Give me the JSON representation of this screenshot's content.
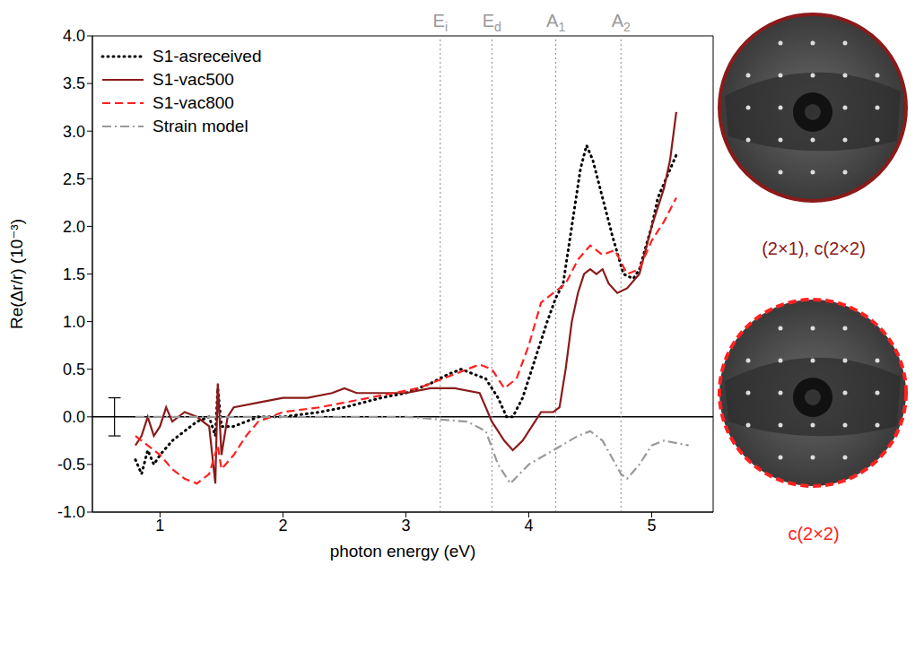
{
  "chart_data": {
    "type": "line",
    "x_label": "photon energy (eV)",
    "y_label": "Re(Δr/r) (10⁻³)",
    "xlim": [
      0.45,
      5.5
    ],
    "xticks": [
      1,
      2,
      3,
      4,
      5
    ],
    "ylim": [
      -1,
      4
    ],
    "yticks": [
      {
        "value": -1,
        "label": "-1.0"
      },
      -0.5,
      {
        "value": 0,
        "label": "0.0"
      },
      0.5,
      {
        "value": 1,
        "label": "1.0"
      },
      1.5,
      {
        "value": 2,
        "label": "2.0"
      },
      2.5,
      {
        "value": 3,
        "label": "3.0"
      },
      3.5,
      {
        "value": 4,
        "label": "4.0"
      }
    ],
    "grid": false,
    "legend": "upper left",
    "series": [
      {
        "name": "S1-asreceived",
        "color": "#000000",
        "line_style": "dotted",
        "x": [
          0.8,
          0.85,
          0.9,
          0.95,
          1.0,
          1.1,
          1.2,
          1.3,
          1.4,
          1.45,
          1.47,
          1.5,
          1.6,
          1.8,
          2.0,
          2.3,
          2.5,
          2.8,
          3.0,
          3.2,
          3.35,
          3.45,
          3.55,
          3.65,
          3.75,
          3.82,
          3.87,
          3.95,
          4.05,
          4.15,
          4.22,
          4.28,
          4.35,
          4.42,
          4.47,
          4.52,
          4.6,
          4.68,
          4.77,
          4.85,
          4.9,
          5.0,
          5.05,
          5.15,
          5.2
        ],
        "values": [
          -0.45,
          -0.6,
          -0.35,
          -0.5,
          -0.4,
          -0.25,
          -0.15,
          -0.05,
          0.0,
          -0.2,
          0.3,
          -0.1,
          -0.1,
          0.0,
          0.0,
          0.05,
          0.1,
          0.2,
          0.25,
          0.35,
          0.45,
          0.5,
          0.45,
          0.4,
          0.2,
          0.0,
          0.0,
          0.2,
          0.6,
          1.0,
          1.25,
          1.4,
          2.0,
          2.6,
          2.85,
          2.7,
          2.3,
          1.9,
          1.5,
          1.45,
          1.55,
          2.0,
          2.3,
          2.6,
          2.75
        ]
      },
      {
        "name": "S1-vac500",
        "color": "#8b1a1a",
        "line_style": "solid",
        "x": [
          0.8,
          0.85,
          0.9,
          0.95,
          1.0,
          1.05,
          1.1,
          1.2,
          1.3,
          1.4,
          1.45,
          1.47,
          1.5,
          1.55,
          1.6,
          1.8,
          2.0,
          2.2,
          2.4,
          2.5,
          2.6,
          2.8,
          3.0,
          3.2,
          3.4,
          3.6,
          3.65,
          3.7,
          3.8,
          3.87,
          3.95,
          4.05,
          4.1,
          4.2,
          4.25,
          4.3,
          4.35,
          4.4,
          4.45,
          4.5,
          4.55,
          4.6,
          4.65,
          4.72,
          4.8,
          4.9,
          5.0,
          5.1,
          5.15,
          5.2
        ],
        "values": [
          -0.3,
          -0.2,
          0.0,
          -0.2,
          -0.1,
          0.1,
          -0.05,
          0.05,
          0.0,
          -0.1,
          -0.7,
          0.35,
          -0.4,
          0.0,
          0.1,
          0.15,
          0.2,
          0.2,
          0.25,
          0.3,
          0.25,
          0.25,
          0.25,
          0.3,
          0.3,
          0.25,
          0.1,
          -0.05,
          -0.25,
          -0.35,
          -0.25,
          -0.05,
          0.05,
          0.05,
          0.1,
          0.5,
          1.0,
          1.3,
          1.5,
          1.55,
          1.5,
          1.55,
          1.4,
          1.3,
          1.35,
          1.5,
          2.0,
          2.4,
          2.7,
          3.2
        ]
      },
      {
        "name": "S1-vac800",
        "color": "#ff2020",
        "line_style": "dashed",
        "x": [
          0.8,
          0.9,
          1.0,
          1.1,
          1.2,
          1.3,
          1.4,
          1.47,
          1.5,
          1.6,
          1.7,
          1.8,
          1.9,
          2.0,
          2.3,
          2.5,
          2.7,
          2.9,
          3.1,
          3.3,
          3.5,
          3.6,
          3.7,
          3.8,
          3.9,
          4.0,
          4.1,
          4.2,
          4.3,
          4.4,
          4.5,
          4.6,
          4.7,
          4.8,
          4.9,
          5.0,
          5.1,
          5.2
        ],
        "values": [
          -0.2,
          -0.3,
          -0.4,
          -0.55,
          -0.65,
          -0.7,
          -0.6,
          -0.3,
          -0.55,
          -0.4,
          -0.2,
          -0.05,
          0.0,
          0.05,
          0.1,
          0.15,
          0.2,
          0.25,
          0.3,
          0.4,
          0.5,
          0.55,
          0.5,
          0.3,
          0.4,
          0.75,
          1.2,
          1.3,
          1.4,
          1.65,
          1.8,
          1.7,
          1.75,
          1.5,
          1.55,
          1.85,
          2.05,
          2.3
        ]
      },
      {
        "name": "Strain model",
        "color": "#999999",
        "line_style": "dashdot",
        "x": [
          0.8,
          1.5,
          2.0,
          3.0,
          3.5,
          3.65,
          3.75,
          3.85,
          4.0,
          4.2,
          4.4,
          4.5,
          4.6,
          4.75,
          4.8,
          4.9,
          5.0,
          5.1,
          5.3
        ],
        "values": [
          0.0,
          0.0,
          0.0,
          0.0,
          -0.05,
          -0.15,
          -0.5,
          -0.7,
          -0.5,
          -0.35,
          -0.2,
          -0.15,
          -0.25,
          -0.6,
          -0.65,
          -0.5,
          -0.3,
          -0.25,
          -0.3
        ]
      }
    ],
    "reference_lines": {
      "y": 0
    },
    "annotations": [
      {
        "x": 3.28,
        "label": "Ei"
      },
      {
        "x": 3.7,
        "label": "Ed"
      },
      {
        "x": 4.22,
        "label": "A1"
      },
      {
        "x": 4.75,
        "label": "A2"
      }
    ],
    "error_bar": {
      "x": 0.63,
      "y": 0,
      "error": 0.2
    },
    "insets": [
      {
        "label": "(2×1), c(2×2)",
        "color": "#8b1a1a",
        "line_style": "solid"
      },
      {
        "label": "c(2×2)",
        "color": "#ff2020",
        "line_style": "dashed"
      }
    ]
  }
}
